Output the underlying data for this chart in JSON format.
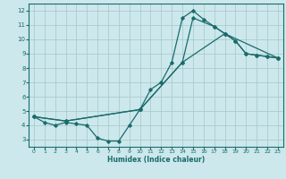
{
  "title": "",
  "xlabel": "Humidex (Indice chaleur)",
  "ylabel": "",
  "bg_color": "#cce8ec",
  "grid_color": "#aacccc",
  "line_color": "#1a6b6b",
  "xlim": [
    -0.5,
    23.5
  ],
  "ylim": [
    2.5,
    12.5
  ],
  "xticks": [
    0,
    1,
    2,
    3,
    4,
    5,
    6,
    7,
    8,
    9,
    10,
    11,
    12,
    13,
    14,
    15,
    16,
    17,
    18,
    19,
    20,
    21,
    22,
    23
  ],
  "yticks": [
    3,
    4,
    5,
    6,
    7,
    8,
    9,
    10,
    11,
    12
  ],
  "line1_x": [
    0,
    1,
    2,
    3,
    4,
    5,
    6,
    7,
    8,
    9,
    10,
    11,
    12,
    13,
    14,
    15,
    16,
    17,
    18,
    19,
    20,
    21,
    22,
    23
  ],
  "line1_y": [
    4.6,
    4.2,
    4.0,
    4.2,
    4.1,
    4.0,
    3.1,
    2.9,
    2.9,
    4.0,
    5.1,
    6.5,
    7.0,
    8.4,
    11.5,
    12.0,
    11.4,
    10.9,
    10.4,
    9.9,
    9.0,
    8.9,
    8.8,
    8.7
  ],
  "line2_x": [
    0,
    3,
    10,
    14,
    15,
    17,
    18,
    19,
    20,
    21,
    22,
    23
  ],
  "line2_y": [
    4.6,
    4.3,
    5.1,
    8.4,
    11.5,
    10.9,
    10.4,
    9.9,
    9.0,
    8.9,
    8.8,
    8.7
  ],
  "line3_x": [
    0,
    3,
    10,
    14,
    18,
    23
  ],
  "line3_y": [
    4.6,
    4.3,
    5.1,
    8.4,
    10.4,
    8.7
  ]
}
